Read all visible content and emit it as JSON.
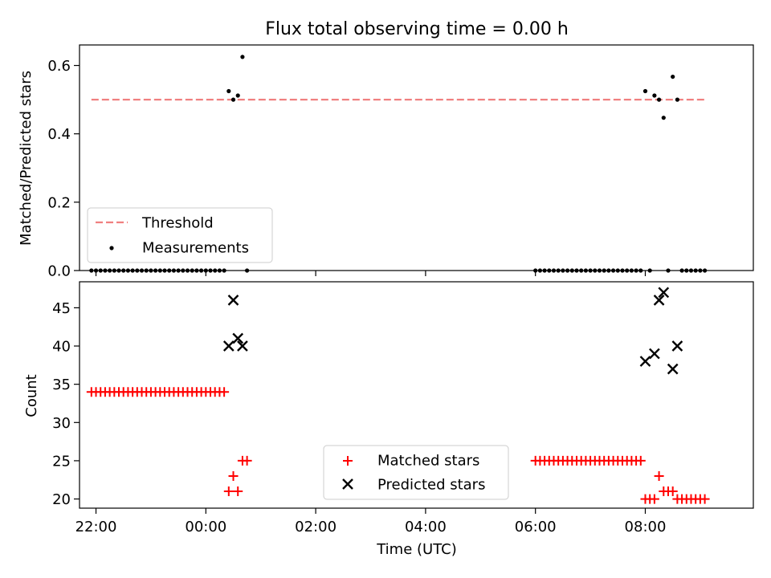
{
  "title": "Flux total observing time = 0.00 h",
  "chart_data": [
    {
      "type": "scatter",
      "panel": "top",
      "ylabel": "Matched/Predicted stars",
      "xlabel": "",
      "xlim": [
        "21:42",
        "09:58"
      ],
      "ylim": [
        0,
        0.66
      ],
      "yticks": [
        0.0,
        0.2,
        0.4,
        0.6
      ],
      "ytick_labels": [
        "0.0",
        "0.2",
        "0.4",
        "0.6"
      ],
      "threshold": {
        "name": "Threshold",
        "value": 0.5,
        "x_start": "21:55",
        "x_end": "09:05",
        "color": "#f08080",
        "style": "dashed"
      },
      "series": [
        {
          "name": "Measurements",
          "color": "#000000",
          "marker": "dot",
          "points": [
            [
              "21:55",
              0
            ],
            [
              "22:00",
              0
            ],
            [
              "22:05",
              0
            ],
            [
              "22:10",
              0
            ],
            [
              "22:15",
              0
            ],
            [
              "22:20",
              0
            ],
            [
              "22:25",
              0
            ],
            [
              "22:30",
              0
            ],
            [
              "22:35",
              0
            ],
            [
              "22:40",
              0
            ],
            [
              "22:45",
              0
            ],
            [
              "22:50",
              0
            ],
            [
              "22:55",
              0
            ],
            [
              "23:00",
              0
            ],
            [
              "23:05",
              0
            ],
            [
              "23:10",
              0
            ],
            [
              "23:15",
              0
            ],
            [
              "23:20",
              0
            ],
            [
              "23:25",
              0
            ],
            [
              "23:30",
              0
            ],
            [
              "23:35",
              0
            ],
            [
              "23:40",
              0
            ],
            [
              "23:45",
              0
            ],
            [
              "23:50",
              0
            ],
            [
              "23:55",
              0
            ],
            [
              "00:00",
              0
            ],
            [
              "00:05",
              0
            ],
            [
              "00:10",
              0
            ],
            [
              "00:15",
              0
            ],
            [
              "00:20",
              0
            ],
            [
              "00:25",
              0.525
            ],
            [
              "00:30",
              0.5
            ],
            [
              "00:35",
              0.512
            ],
            [
              "00:40",
              0.625
            ],
            [
              "00:45",
              0
            ],
            [
              "06:00",
              0
            ],
            [
              "06:05",
              0
            ],
            [
              "06:10",
              0
            ],
            [
              "06:15",
              0
            ],
            [
              "06:20",
              0
            ],
            [
              "06:25",
              0
            ],
            [
              "06:30",
              0
            ],
            [
              "06:35",
              0
            ],
            [
              "06:40",
              0
            ],
            [
              "06:45",
              0
            ],
            [
              "06:50",
              0
            ],
            [
              "06:55",
              0
            ],
            [
              "07:00",
              0
            ],
            [
              "07:05",
              0
            ],
            [
              "07:10",
              0
            ],
            [
              "07:15",
              0
            ],
            [
              "07:20",
              0
            ],
            [
              "07:25",
              0
            ],
            [
              "07:30",
              0
            ],
            [
              "07:35",
              0
            ],
            [
              "07:40",
              0
            ],
            [
              "07:45",
              0
            ],
            [
              "07:50",
              0
            ],
            [
              "07:55",
              0
            ],
            [
              "08:00",
              0.525
            ],
            [
              "08:05",
              0
            ],
            [
              "08:10",
              0.512
            ],
            [
              "08:15",
              0.5
            ],
            [
              "08:20",
              0.447
            ],
            [
              "08:25",
              0
            ],
            [
              "08:30",
              0.567
            ],
            [
              "08:35",
              0.5
            ],
            [
              "08:40",
              0
            ],
            [
              "08:45",
              0
            ],
            [
              "08:50",
              0
            ],
            [
              "08:55",
              0
            ],
            [
              "09:00",
              0
            ],
            [
              "09:05",
              0
            ]
          ]
        }
      ],
      "legend": {
        "placement": "lower-left",
        "entries": [
          "Threshold",
          "Measurements"
        ]
      }
    },
    {
      "type": "scatter",
      "panel": "bottom",
      "ylabel": "Count",
      "xlabel": "Time (UTC)",
      "xlim": [
        "21:42",
        "09:58"
      ],
      "ylim": [
        18.8,
        48.4
      ],
      "yticks": [
        20,
        25,
        30,
        35,
        40,
        45
      ],
      "ytick_labels": [
        "20",
        "25",
        "30",
        "35",
        "40",
        "45"
      ],
      "xticks": [
        "22:00",
        "00:00",
        "02:00",
        "04:00",
        "06:00",
        "08:00"
      ],
      "series": [
        {
          "name": "Matched stars",
          "color": "#ff0000",
          "marker": "plus",
          "points": [
            [
              "21:55",
              34
            ],
            [
              "22:00",
              34
            ],
            [
              "22:05",
              34
            ],
            [
              "22:10",
              34
            ],
            [
              "22:15",
              34
            ],
            [
              "22:20",
              34
            ],
            [
              "22:25",
              34
            ],
            [
              "22:30",
              34
            ],
            [
              "22:35",
              34
            ],
            [
              "22:40",
              34
            ],
            [
              "22:45",
              34
            ],
            [
              "22:50",
              34
            ],
            [
              "22:55",
              34
            ],
            [
              "23:00",
              34
            ],
            [
              "23:05",
              34
            ],
            [
              "23:10",
              34
            ],
            [
              "23:15",
              34
            ],
            [
              "23:20",
              34
            ],
            [
              "23:25",
              34
            ],
            [
              "23:30",
              34
            ],
            [
              "23:35",
              34
            ],
            [
              "23:40",
              34
            ],
            [
              "23:45",
              34
            ],
            [
              "23:50",
              34
            ],
            [
              "23:55",
              34
            ],
            [
              "00:00",
              34
            ],
            [
              "00:05",
              34
            ],
            [
              "00:10",
              34
            ],
            [
              "00:15",
              34
            ],
            [
              "00:20",
              34
            ],
            [
              "00:25",
              21
            ],
            [
              "00:30",
              23
            ],
            [
              "00:35",
              21
            ],
            [
              "00:40",
              25
            ],
            [
              "00:45",
              25
            ],
            [
              "06:00",
              25
            ],
            [
              "06:05",
              25
            ],
            [
              "06:10",
              25
            ],
            [
              "06:15",
              25
            ],
            [
              "06:20",
              25
            ],
            [
              "06:25",
              25
            ],
            [
              "06:30",
              25
            ],
            [
              "06:35",
              25
            ],
            [
              "06:40",
              25
            ],
            [
              "06:45",
              25
            ],
            [
              "06:50",
              25
            ],
            [
              "06:55",
              25
            ],
            [
              "07:00",
              25
            ],
            [
              "07:05",
              25
            ],
            [
              "07:10",
              25
            ],
            [
              "07:15",
              25
            ],
            [
              "07:20",
              25
            ],
            [
              "07:25",
              25
            ],
            [
              "07:30",
              25
            ],
            [
              "07:35",
              25
            ],
            [
              "07:40",
              25
            ],
            [
              "07:45",
              25
            ],
            [
              "07:50",
              25
            ],
            [
              "07:55",
              25
            ],
            [
              "08:00",
              20
            ],
            [
              "08:05",
              20
            ],
            [
              "08:10",
              20
            ],
            [
              "08:15",
              23
            ],
            [
              "08:20",
              21
            ],
            [
              "08:25",
              21
            ],
            [
              "08:30",
              21
            ],
            [
              "08:35",
              20
            ],
            [
              "08:40",
              20
            ],
            [
              "08:45",
              20
            ],
            [
              "08:50",
              20
            ],
            [
              "08:55",
              20
            ],
            [
              "09:00",
              20
            ],
            [
              "09:05",
              20
            ]
          ]
        },
        {
          "name": "Predicted stars",
          "color": "#000000",
          "marker": "x",
          "points": [
            [
              "00:25",
              40
            ],
            [
              "00:30",
              46
            ],
            [
              "00:35",
              41
            ],
            [
              "00:40",
              40
            ],
            [
              "08:00",
              38
            ],
            [
              "08:10",
              39
            ],
            [
              "08:15",
              46
            ],
            [
              "08:20",
              47
            ],
            [
              "08:30",
              37
            ],
            [
              "08:35",
              40
            ]
          ]
        }
      ],
      "legend": {
        "placement": "lower-center",
        "entries": [
          "Matched stars",
          "Predicted stars"
        ]
      }
    }
  ]
}
